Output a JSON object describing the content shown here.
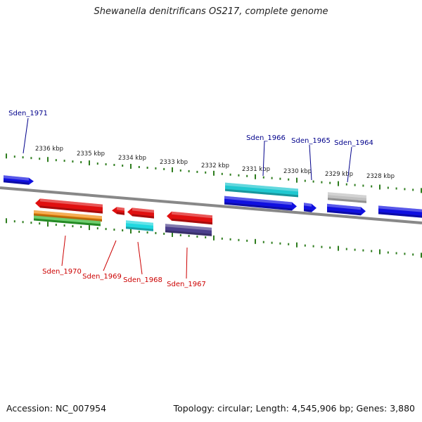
{
  "title": "Shewanella denitrificans OS217, complete genome",
  "footer": {
    "accession": "Accession: NC_007954",
    "topology": "Topology: circular; Length: 4,545,906 bp; Genes: 3,880"
  },
  "colors": {
    "backbone": "#888888",
    "tick": "#2e7d1e",
    "tick_label": "#222222",
    "label_forward": "#00008b",
    "label_reverse": "#cc0000"
  },
  "ticks": {
    "unit": "kbp",
    "labels": [
      "2336 kbp",
      "2335 kbp",
      "2334 kbp",
      "2333 kbp",
      "2332 kbp",
      "2331 kbp",
      "2330 kbp",
      "2329 kbp",
      "2328 kbp"
    ]
  },
  "gene_labels": {
    "forward": [
      "Sden_1971",
      "Sden_1966",
      "Sden_1965",
      "Sden_1964"
    ],
    "reverse": [
      "Sden_1970",
      "Sden_1969",
      "Sden_1968",
      "Sden_1967"
    ]
  },
  "features": [
    {
      "id": "f1",
      "strand": "forward",
      "color": "#1010e0"
    },
    {
      "id": "f2",
      "strand": "forward",
      "color": "#20c8d0"
    },
    {
      "id": "f3",
      "strand": "forward",
      "color": "#1010e0"
    },
    {
      "id": "f4",
      "strand": "forward",
      "color": "#1010e0"
    },
    {
      "id": "f5",
      "strand": "forward",
      "color": "#1010e0"
    },
    {
      "id": "f6",
      "strand": "forward",
      "color": "#c0c0c0"
    },
    {
      "id": "f7",
      "strand": "forward",
      "color": "#1010e0"
    },
    {
      "id": "r1",
      "strand": "reverse",
      "color": "#e01010"
    },
    {
      "id": "r2",
      "strand": "reverse",
      "color": "#f08c10"
    },
    {
      "id": "r3",
      "strand": "reverse",
      "color": "#30b830"
    },
    {
      "id": "r4",
      "strand": "reverse",
      "color": "#e01010"
    },
    {
      "id": "r5",
      "strand": "reverse",
      "color": "#e01010"
    },
    {
      "id": "r6",
      "strand": "reverse",
      "color": "#20d8e0"
    },
    {
      "id": "r7",
      "strand": "reverse",
      "color": "#e01010"
    },
    {
      "id": "r8",
      "strand": "reverse",
      "color": "#4b3f8c"
    }
  ]
}
